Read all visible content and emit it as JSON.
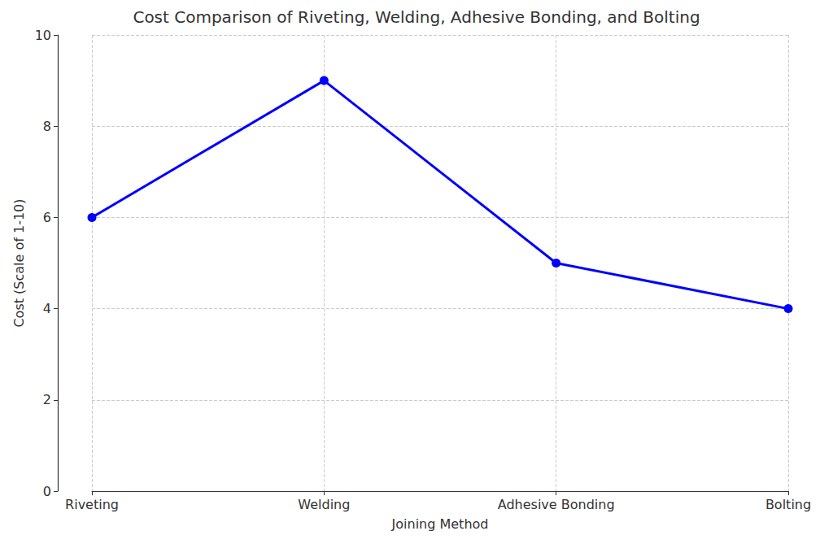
{
  "chart_data": {
    "type": "line",
    "title": "Cost Comparison of Riveting, Welding, Adhesive Bonding, and Bolting",
    "x_label": "Joining Method",
    "y_label": "Cost (Scale of 1-10)",
    "categories": [
      "Riveting",
      "Welding",
      "Adhesive Bonding",
      "Bolting"
    ],
    "values": [
      6,
      9,
      5,
      4
    ],
    "color": "#0000ff",
    "marker": "circle",
    "line_style": "solid",
    "ylim": [
      0,
      10
    ],
    "yticks": [
      0,
      2,
      4,
      6,
      8,
      10
    ],
    "grid": true
  }
}
